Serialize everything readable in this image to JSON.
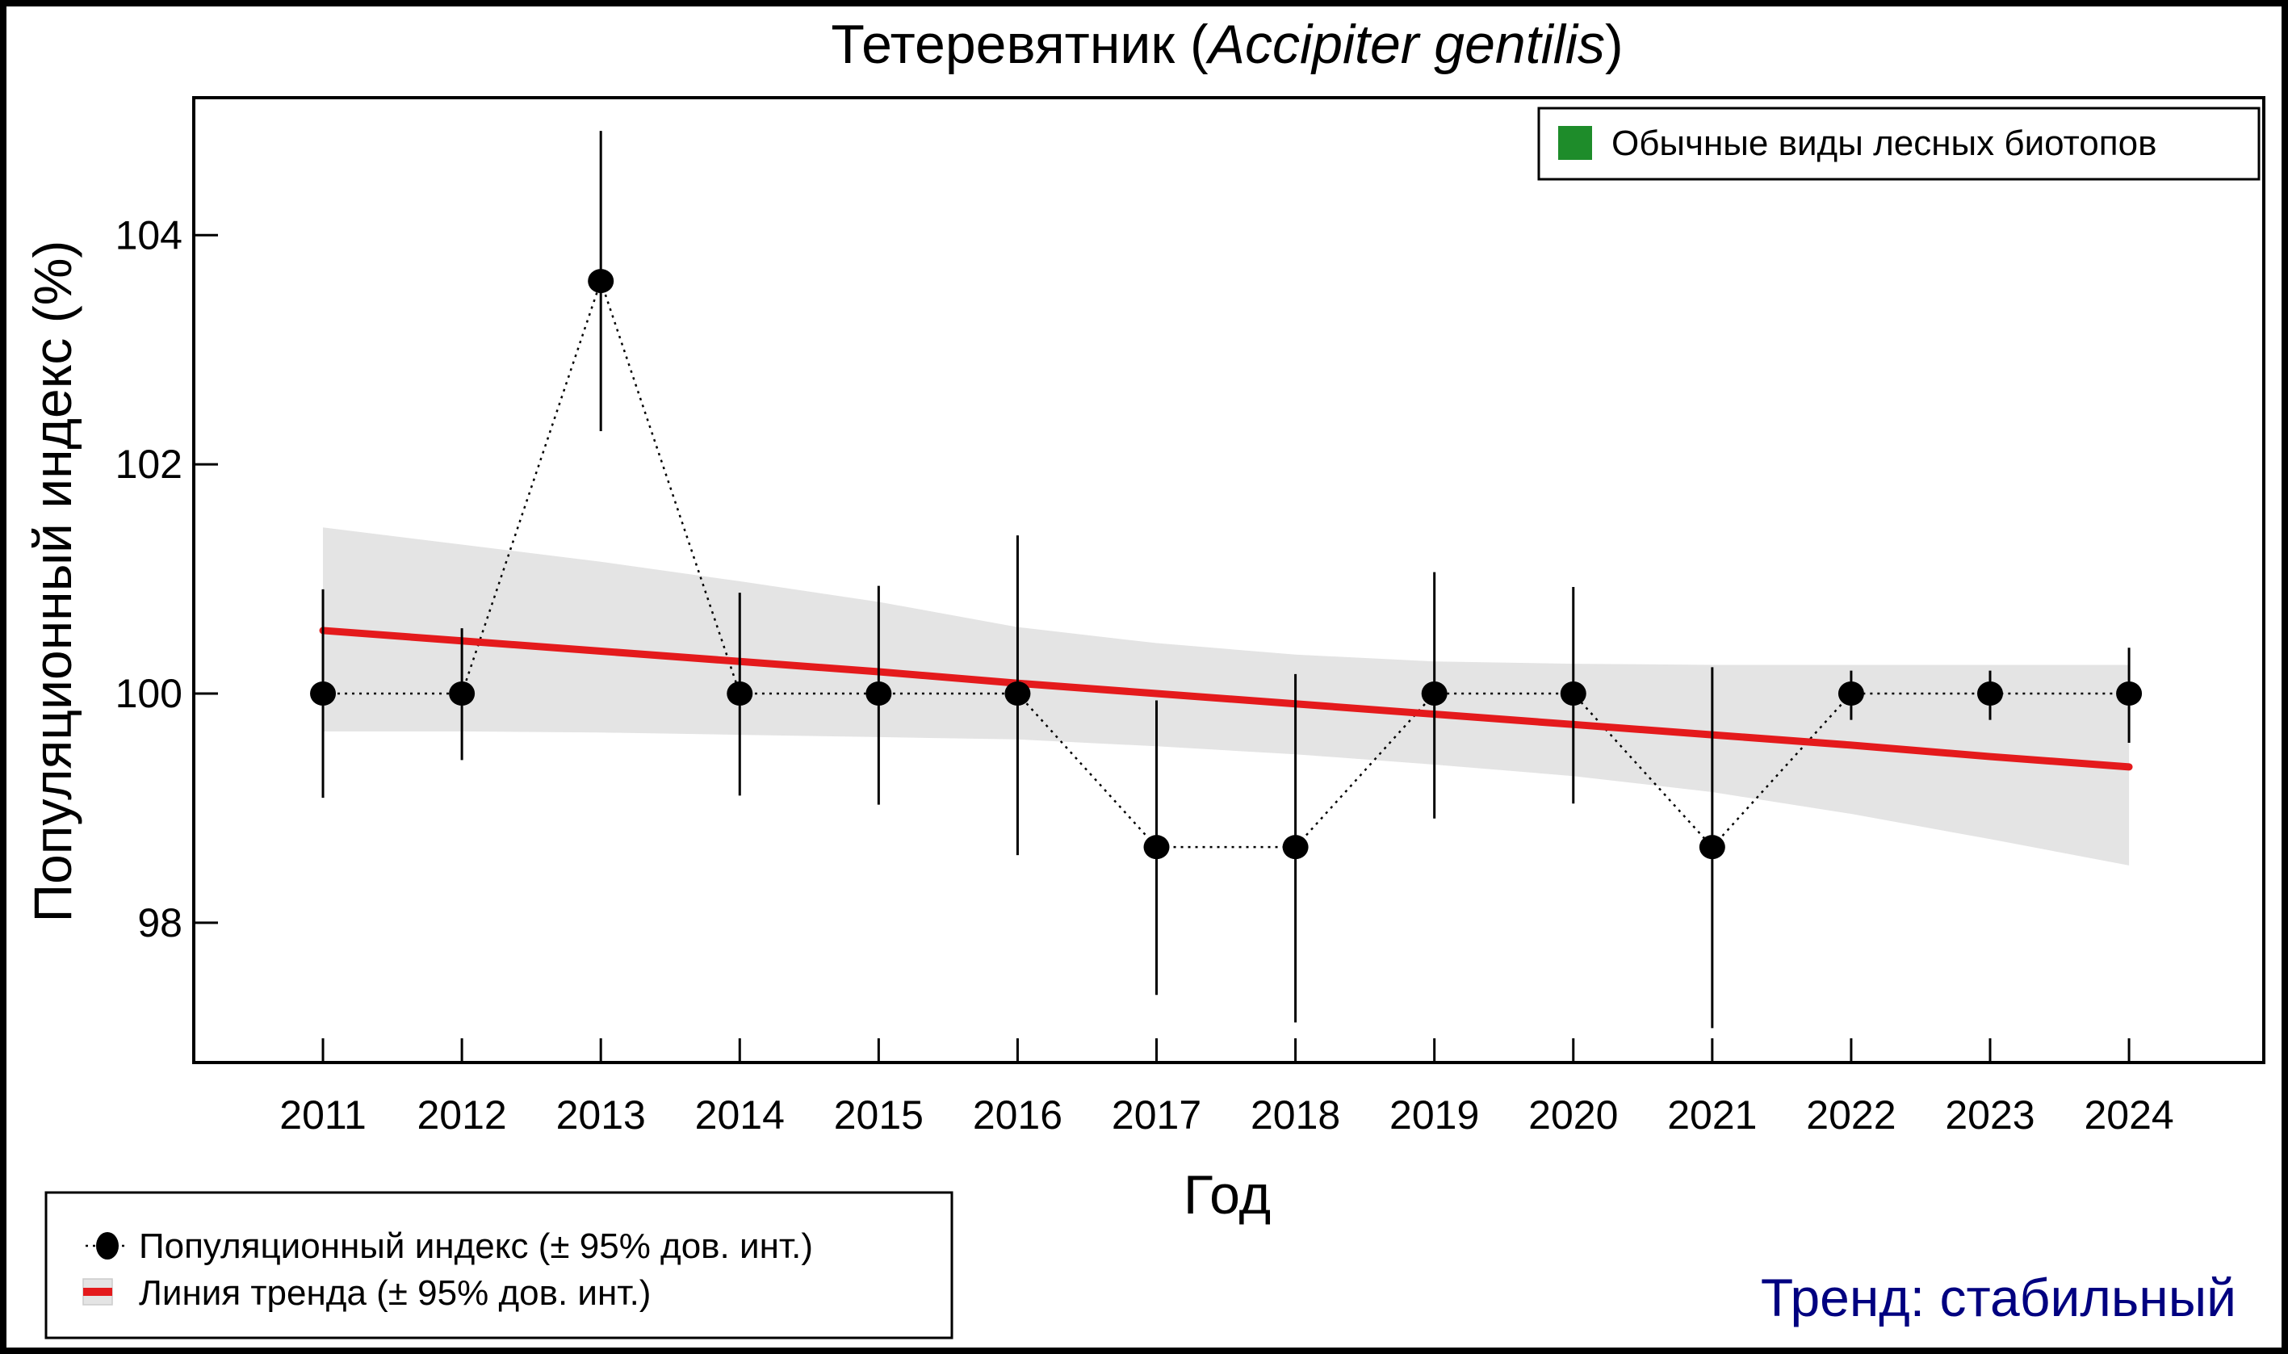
{
  "chart_data": {
    "type": "line",
    "title": "Тетеревятник",
    "title_species_latin": "Accipiter gentilis",
    "xlabel": "Год",
    "ylabel": "Популяционный индекс (%)",
    "x": [
      2011,
      2012,
      2013,
      2014,
      2015,
      2016,
      2017,
      2018,
      2019,
      2020,
      2021,
      2022,
      2023,
      2024
    ],
    "xlim": [
      2010.07,
      2024.97
    ],
    "ylim": [
      96.78,
      105.2
    ],
    "yticks": [
      98,
      100,
      102,
      104
    ],
    "grid": false,
    "series": [
      {
        "name": "Популяционный индекс (± 95% дов. инт.)",
        "style": "points-dotted",
        "values": [
          100,
          100,
          103.6,
          100,
          100,
          100,
          98.66,
          98.66,
          100,
          100,
          98.66,
          100,
          100,
          100
        ],
        "ci_low": [
          99.09,
          99.42,
          102.29,
          99.11,
          99.03,
          98.59,
          97.37,
          97.13,
          98.91,
          99.04,
          97.08,
          99.77,
          99.77,
          99.57
        ],
        "ci_high": [
          100.91,
          100.57,
          104.91,
          100.88,
          100.94,
          101.38,
          99.94,
          100.17,
          101.06,
          100.93,
          100.23,
          100.2,
          100.2,
          100.4
        ]
      },
      {
        "name": "Линия тренда (± 95% дов. инт.)",
        "style": "trend",
        "values": [
          100.55,
          100.46,
          100.37,
          100.28,
          100.19,
          100.09,
          100.0,
          99.91,
          99.82,
          99.73,
          99.64,
          99.55,
          99.45,
          99.36
        ],
        "ci_low": [
          99.67,
          99.67,
          99.66,
          99.64,
          99.62,
          99.6,
          99.54,
          99.47,
          99.38,
          99.28,
          99.14,
          98.95,
          98.73,
          98.5
        ],
        "ci_high": [
          101.45,
          101.3,
          101.15,
          100.98,
          100.8,
          100.58,
          100.44,
          100.34,
          100.28,
          100.26,
          100.25,
          100.25,
          100.25,
          100.25
        ]
      }
    ],
    "legend_top": {
      "label": "Обычные виды лесных биотопов",
      "color": "#1e8c2a",
      "placement": "top-right"
    },
    "legend_bottom": {
      "placement": "bottom-left",
      "items": [
        {
          "label": "Популяционный индекс (± 95% дов. инт.)",
          "icon": "black-dot-dotted-line-icon"
        },
        {
          "label": "Линия тренда (± 95% дов. инт.)",
          "icon": "red-line-grey-band-icon"
        }
      ]
    },
    "annotation": {
      "text": "Тренд: стабильный",
      "color": "#000080"
    },
    "colors": {
      "trend": "#e41a1c",
      "band": "#e4e4e4",
      "points": "#000000"
    }
  }
}
